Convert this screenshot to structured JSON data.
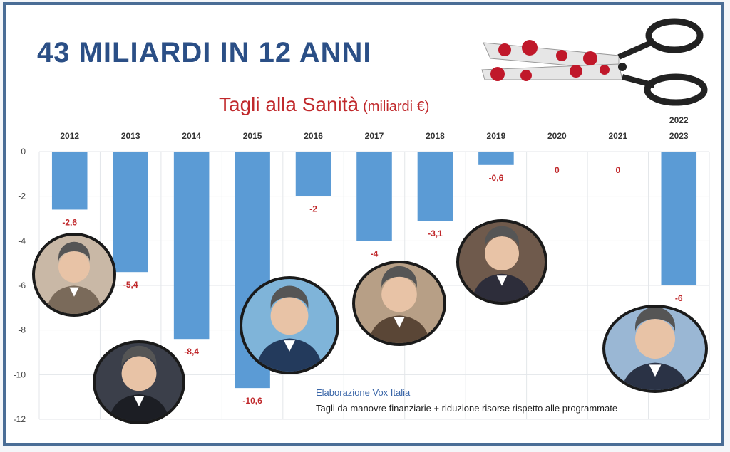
{
  "headline": "43 MILIARDI IN 12 ANNI",
  "subtitle": {
    "main": "Tagli alla Sanità",
    "unit": "(miliardi €)"
  },
  "source": "Elaborazione Vox Italia",
  "note": "Tagli da manovre finanziarie + riduzione risorse rispetto alle programmate",
  "colors": {
    "bar": "#5b9bd5",
    "value_label": "#c0282b",
    "headline": "#2b4f86",
    "frame": "#4a6d96"
  },
  "chart_data": {
    "type": "bar",
    "title": "Tagli alla Sanità (miliardi €)",
    "categories": [
      [
        "2012"
      ],
      [
        "2013"
      ],
      [
        "2014"
      ],
      [
        "2015"
      ],
      [
        "2016"
      ],
      [
        "2017"
      ],
      [
        "2018"
      ],
      [
        "2019"
      ],
      [
        "2020"
      ],
      [
        "2021"
      ],
      [
        "2022",
        "2023"
      ]
    ],
    "values": [
      -2.6,
      -5.4,
      -8.4,
      -10.6,
      -2,
      -4,
      -3.1,
      -0.6,
      0,
      0,
      -6
    ],
    "value_labels": [
      "-2,6",
      "-5,4",
      "-8,4",
      "-10,6",
      "-2",
      "-4",
      "-3,1",
      "-0,6",
      "0",
      "0",
      "-6"
    ],
    "ylim": [
      -12,
      0
    ],
    "yticks": [
      0,
      -2,
      -4,
      -6,
      -8,
      -10,
      -12
    ],
    "grid": true,
    "xaxis_position": "top"
  },
  "portraits": [
    {
      "name": "portrait-2012",
      "icon": "person-photo-icon"
    },
    {
      "name": "portrait-2013",
      "icon": "person-photo-icon"
    },
    {
      "name": "portrait-2015",
      "icon": "person-photo-icon"
    },
    {
      "name": "portrait-2017",
      "icon": "person-photo-icon"
    },
    {
      "name": "portrait-2019",
      "icon": "person-photo-icon"
    },
    {
      "name": "portrait-2022-2023",
      "icon": "person-photo-icon"
    }
  ],
  "decoration": {
    "icon": "bloody-scissors-icon"
  }
}
